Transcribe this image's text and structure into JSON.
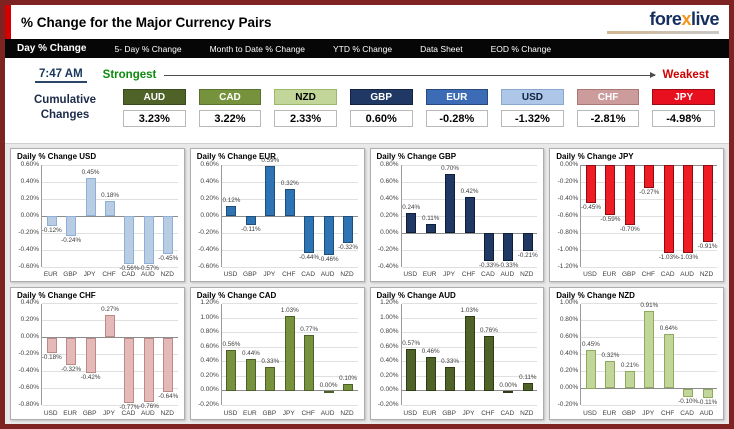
{
  "header": {
    "title": "% Change for the Major Currency Pairs",
    "logo_fore": "fore",
    "logo_x": "x",
    "logo_live": "live"
  },
  "nav": {
    "active_index": 0,
    "items": [
      "Day % Change",
      "5- Day % Change",
      "Month to Date % Change",
      "YTD % Change",
      "Data Sheet",
      "EOD % Change"
    ]
  },
  "info": {
    "time": "7:47 AM",
    "strongest": "Strongest",
    "weakest": "Weakest",
    "cumulative_line1": "Cumulative",
    "cumulative_line2": "Changes"
  },
  "cumulative": [
    {
      "currency": "AUD",
      "value": "3.23%"
    },
    {
      "currency": "CAD",
      "value": "3.22%"
    },
    {
      "currency": "NZD",
      "value": "2.33%"
    },
    {
      "currency": "GBP",
      "value": "0.60%"
    },
    {
      "currency": "EUR",
      "value": "-0.28%"
    },
    {
      "currency": "USD",
      "value": "-1.32%"
    },
    {
      "currency": "CHF",
      "value": "-2.81%"
    },
    {
      "currency": "JPY",
      "value": "-4.98%"
    }
  ],
  "currency_colors": {
    "AUD": {
      "badge_bg": "#4f6228",
      "badge_border": "#3b4a1d",
      "badge_fg": "#ffffff",
      "bar_fill": "#4f6228",
      "bar_border": "#2f3c14"
    },
    "CAD": {
      "badge_bg": "#76923c",
      "badge_border": "#5a7230",
      "badge_fg": "#ffffff",
      "bar_fill": "#76923c",
      "bar_border": "#4c6126"
    },
    "NZD": {
      "badge_bg": "#c2d69a",
      "badge_border": "#9cb86a",
      "badge_fg": "#000000",
      "bar_fill": "#c2d69a",
      "bar_border": "#8fa95e"
    },
    "GBP": {
      "badge_bg": "#1f3864",
      "badge_border": "#122240",
      "badge_fg": "#ffffff",
      "bar_fill": "#1f3864",
      "bar_border": "#0f1d36"
    },
    "EUR": {
      "badge_bg": "#3c6cb5",
      "badge_border": "#28497c",
      "badge_fg": "#ffffff",
      "bar_fill": "#2e74b5",
      "bar_border": "#1f4e79"
    },
    "USD": {
      "badge_bg": "#aec6e8",
      "badge_border": "#87a9cf",
      "badge_fg": "#10233f",
      "bar_fill": "#b8cce4",
      "bar_border": "#8eb0d4"
    },
    "CHF": {
      "badge_bg": "#cb9c9b",
      "badge_border": "#a87776",
      "badge_fg": "#ffffff",
      "bar_fill": "#e5b9b7",
      "bar_border": "#bb8987"
    },
    "JPY": {
      "badge_bg": "#e80f1e",
      "badge_border": "#9c0a12",
      "badge_fg": "#ffffff",
      "bar_fill": "#ee1c25",
      "bar_border": "#8f0b10"
    }
  },
  "chart_data": [
    {
      "type": "bar",
      "currency": "USD",
      "title": "Daily % Change USD",
      "categories": [
        "EUR",
        "GBP",
        "JPY",
        "CHF",
        "CAD",
        "AUD",
        "NZD"
      ],
      "values": [
        -0.12,
        -0.24,
        0.45,
        0.18,
        -0.56,
        -0.57,
        -0.45
      ],
      "ylim": [
        -0.6,
        0.6
      ],
      "ytick_step": 0.2
    },
    {
      "type": "bar",
      "currency": "EUR",
      "title": "Daily % Change EUR",
      "categories": [
        "USD",
        "GBP",
        "JPY",
        "CHF",
        "CAD",
        "AUD",
        "NZD"
      ],
      "values": [
        0.12,
        -0.11,
        0.59,
        0.32,
        -0.44,
        -0.46,
        -0.32
      ],
      "ylim": [
        -0.6,
        0.6
      ],
      "ytick_step": 0.2
    },
    {
      "type": "bar",
      "currency": "GBP",
      "title": "Daily % Change GBP",
      "categories": [
        "USD",
        "EUR",
        "JPY",
        "CHF",
        "CAD",
        "AUD",
        "NZD"
      ],
      "values": [
        0.24,
        0.11,
        0.7,
        0.42,
        -0.33,
        -0.33,
        -0.21
      ],
      "ylim": [
        -0.4,
        0.8
      ],
      "ytick_step": 0.2
    },
    {
      "type": "bar",
      "currency": "JPY",
      "title": "Daily % Change JPY",
      "categories": [
        "USD",
        "EUR",
        "GBP",
        "CHF",
        "CAD",
        "AUD",
        "NZD"
      ],
      "values": [
        -0.45,
        -0.59,
        -0.7,
        -0.27,
        -1.03,
        -1.03,
        -0.91
      ],
      "ylim": [
        -1.2,
        0.0
      ],
      "ytick_step": 0.2
    },
    {
      "type": "bar",
      "currency": "CHF",
      "title": "Daily % Change CHF",
      "categories": [
        "USD",
        "EUR",
        "GBP",
        "JPY",
        "CAD",
        "AUD",
        "NZD"
      ],
      "values": [
        -0.18,
        -0.32,
        -0.42,
        0.27,
        -0.77,
        -0.76,
        -0.64
      ],
      "ylim": [
        -0.8,
        0.4
      ],
      "ytick_step": 0.2
    },
    {
      "type": "bar",
      "currency": "CAD",
      "title": "Daily % Change CAD",
      "categories": [
        "USD",
        "EUR",
        "GBP",
        "JPY",
        "CHF",
        "AUD",
        "NZD"
      ],
      "values": [
        0.56,
        0.44,
        0.33,
        1.03,
        0.77,
        0.0,
        0.1
      ],
      "ylim": [
        -0.2,
        1.2
      ],
      "ytick_step": 0.2
    },
    {
      "type": "bar",
      "currency": "AUD",
      "title": "Daily % Change AUD",
      "categories": [
        "USD",
        "EUR",
        "GBP",
        "JPY",
        "CHF",
        "CAD",
        "NZD"
      ],
      "values": [
        0.57,
        0.46,
        0.33,
        1.03,
        0.76,
        0.0,
        0.11
      ],
      "ylim": [
        -0.2,
        1.2
      ],
      "ytick_step": 0.2
    },
    {
      "type": "bar",
      "currency": "NZD",
      "title": "Daily % Change NZD",
      "categories": [
        "USD",
        "EUR",
        "GBP",
        "JPY",
        "CHF",
        "CAD",
        "AUD"
      ],
      "values": [
        0.45,
        0.32,
        0.21,
        0.91,
        0.64,
        -0.1,
        -0.11
      ],
      "ylim": [
        -0.2,
        1.0
      ],
      "ytick_step": 0.2
    }
  ]
}
